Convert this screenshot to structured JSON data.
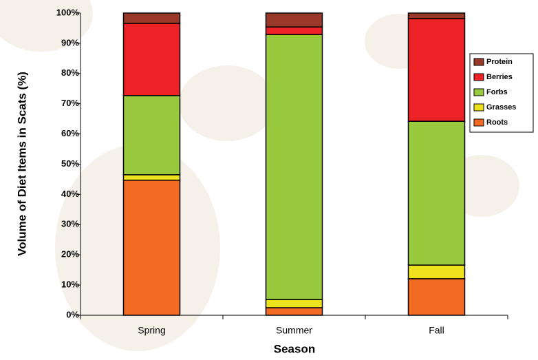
{
  "chart_data": {
    "type": "stacked_bar",
    "x_label": "Season",
    "y_label": "Volume of Diet Items in Scats (%)",
    "categories": [
      "Spring",
      "Summer",
      "Fall"
    ],
    "series": [
      {
        "name": "Roots",
        "color": "#f26b22",
        "values": [
          44.7,
          2.5,
          12.1
        ]
      },
      {
        "name": "Grasses",
        "color": "#eee21c",
        "values": [
          1.8,
          2.7,
          4.5
        ]
      },
      {
        "name": "Forbs",
        "color": "#99c93c",
        "values": [
          26.2,
          87.7,
          47.6
        ]
      },
      {
        "name": "Berries",
        "color": "#ec2227",
        "values": [
          23.9,
          2.5,
          34.0
        ]
      },
      {
        "name": "Protein",
        "color": "#98392a",
        "values": [
          3.4,
          4.6,
          1.8
        ]
      }
    ],
    "ylim": [
      0,
      100
    ],
    "yticks": [
      {
        "value": 0,
        "label": "0%"
      },
      {
        "value": 10,
        "label": "10%"
      },
      {
        "value": 20,
        "label": "20%"
      },
      {
        "value": 30,
        "label": "30%"
      },
      {
        "value": 40,
        "label": "40%"
      },
      {
        "value": 50,
        "label": "50%"
      },
      {
        "value": 60,
        "label": "60%"
      },
      {
        "value": 70,
        "label": "70%"
      },
      {
        "value": 80,
        "label": "80%"
      },
      {
        "value": 90,
        "label": "90%"
      },
      {
        "value": 100,
        "label": "100%"
      }
    ],
    "legend": "right"
  }
}
